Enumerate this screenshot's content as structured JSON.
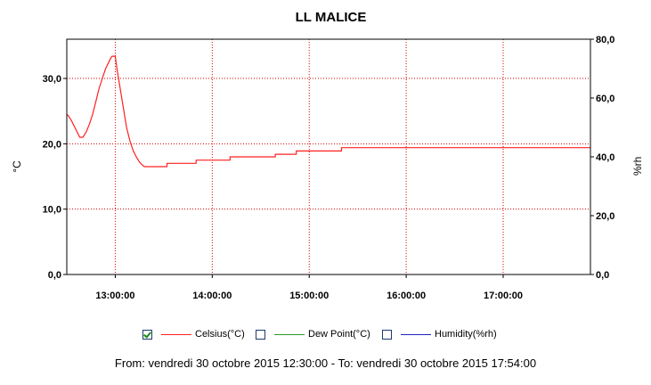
{
  "chart_data": {
    "type": "line",
    "title": "LL MALICE",
    "ylabel_left": "°C",
    "ylabel_right": "%rh",
    "xlim": [
      "12:30:00",
      "17:54:00"
    ],
    "x_ticks": [
      "13:00:00",
      "14:00:00",
      "15:00:00",
      "16:00:00",
      "17:00:00"
    ],
    "ylim_left": [
      0,
      36
    ],
    "y_ticks_left": [
      "0,0",
      "10,0",
      "20,0",
      "30,0"
    ],
    "ylim_right": [
      0,
      80
    ],
    "y_ticks_right": [
      "0,0",
      "20,0",
      "40,0",
      "60,0",
      "80,0"
    ],
    "grid": true,
    "series": [
      {
        "name": "Celsius(°C)",
        "axis": "left",
        "color": "#ff2020",
        "visible": true,
        "points": [
          [
            "12:30:00",
            24.5
          ],
          [
            "12:31:00",
            24.3
          ],
          [
            "12:33:00",
            23.5
          ],
          [
            "12:35:00",
            22.5
          ],
          [
            "12:37:00",
            21.5
          ],
          [
            "12:38:00",
            21.0
          ],
          [
            "12:40:00",
            21.0
          ],
          [
            "12:42:00",
            21.8
          ],
          [
            "12:44:00",
            23.0
          ],
          [
            "12:46:00",
            24.5
          ],
          [
            "12:48:00",
            26.5
          ],
          [
            "12:50:00",
            28.5
          ],
          [
            "12:52:00",
            30.0
          ],
          [
            "12:54:00",
            31.5
          ],
          [
            "12:56:00",
            32.5
          ],
          [
            "12:57:00",
            33.0
          ],
          [
            "12:58:00",
            33.4
          ],
          [
            "13:00:00",
            33.4
          ],
          [
            "13:01:00",
            31.5
          ],
          [
            "13:03:00",
            28.5
          ],
          [
            "13:05:00",
            25.5
          ],
          [
            "13:07:00",
            22.5
          ],
          [
            "13:09:00",
            20.5
          ],
          [
            "13:11:00",
            19.0
          ],
          [
            "13:13:00",
            18.0
          ],
          [
            "13:15:00",
            17.2
          ],
          [
            "13:17:00",
            16.7
          ],
          [
            "13:18:00",
            16.5
          ],
          [
            "13:32:00",
            16.5
          ],
          [
            "13:32:00",
            17.0
          ],
          [
            "13:50:00",
            17.0
          ],
          [
            "13:50:00",
            17.5
          ],
          [
            "14:11:00",
            17.5
          ],
          [
            "14:11:00",
            18.0
          ],
          [
            "14:39:00",
            18.0
          ],
          [
            "14:39:00",
            18.4
          ],
          [
            "14:52:00",
            18.4
          ],
          [
            "14:52:00",
            18.9
          ],
          [
            "15:20:00",
            18.9
          ],
          [
            "15:20:00",
            19.4
          ],
          [
            "17:54:00",
            19.4
          ]
        ]
      },
      {
        "name": "Dew Point(°C)",
        "axis": "left",
        "color": "#2a9a2a",
        "visible": false,
        "points": []
      },
      {
        "name": "Humidity(%rh)",
        "axis": "right",
        "color": "#2020c0",
        "visible": false,
        "points": []
      }
    ]
  },
  "legend": [
    {
      "label": "Celsius(°C)",
      "checked": true,
      "color": "#ff2020"
    },
    {
      "label": "Dew Point(°C)",
      "checked": false,
      "color": "#2a9a2a"
    },
    {
      "label": "Humidity(%rh)",
      "checked": false,
      "color": "#2020c0"
    }
  ],
  "footer": "From: vendredi 30 octobre 2015 12:30:00  -  To: vendredi 30 octobre 2015 17:54:00"
}
